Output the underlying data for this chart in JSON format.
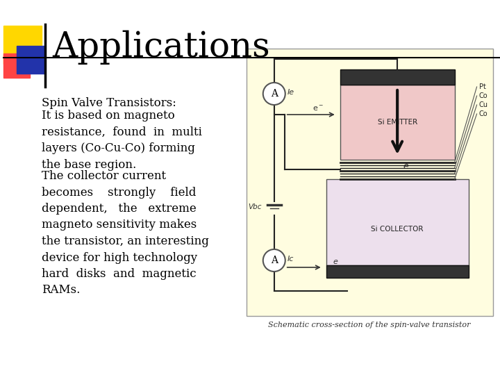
{
  "title": "Applications",
  "bg_color": "#ffffff",
  "title_color": "#000000",
  "title_fontsize": 36,
  "title_font": "serif",
  "text_block1": "Spin Valve Transistors:",
  "text_block2": "It is based on magneto\nresistance,  found  in  multi\nlayers (Co-Cu-Co) forming\nthe base region.",
  "text_block3": "The collector current\nbecomes    strongly    field\ndependent,   the   extreme\nmagneto sensitivity makes\nthe transistor, an interesting\ndevice for high technology\nhard  disks  and  magnetic\nRAMs.",
  "text_color": "#000000",
  "text_fontsize": 12,
  "text_font": "serif",
  "deco_yellow": "#FFD700",
  "deco_red": "#FF4444",
  "deco_blue": "#2233AA",
  "deco_line_color": "#000000",
  "diagram_bg": "#FFFDE0",
  "diagram_caption": "Schematic cross-section of the spin-valve transistor",
  "caption_fontsize": 8,
  "layer_labels": [
    "Pt",
    "Co",
    "Cu",
    "Co"
  ]
}
